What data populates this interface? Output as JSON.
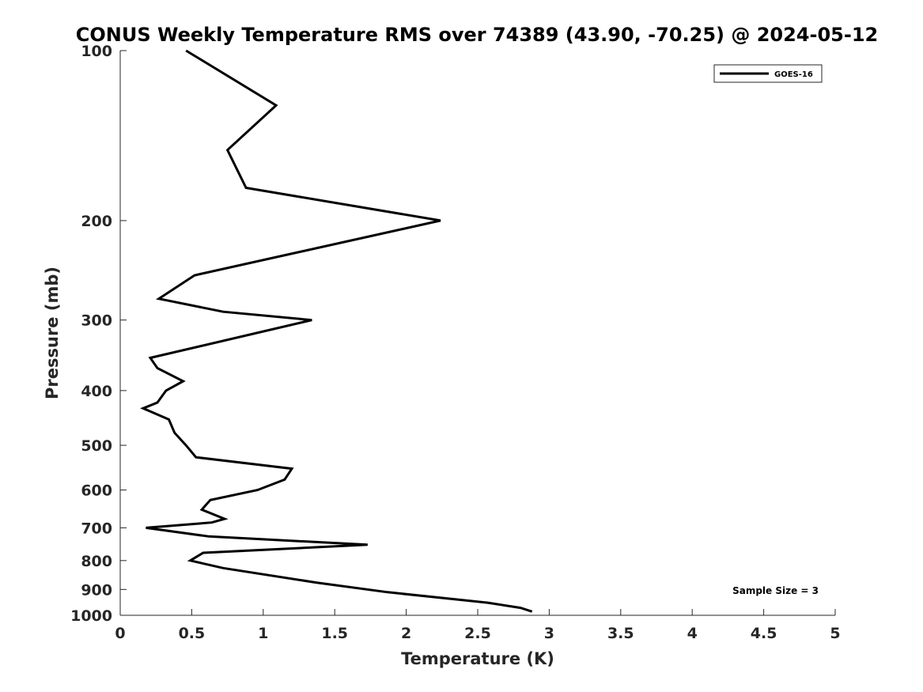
{
  "chart_data": {
    "type": "line",
    "title": "CONUS Weekly Temperature RMS over 74389 (43.90, -70.25) @ 2024-05-12",
    "xlabel": "Temperature (K)",
    "ylabel": "Pressure (mb)",
    "xlim": [
      0,
      5
    ],
    "ylim": [
      100,
      1000
    ],
    "y_scale": "log",
    "y_reversed": true,
    "x_ticks": [
      0,
      0.5,
      1,
      1.5,
      2,
      2.5,
      3,
      3.5,
      4,
      4.5,
      5
    ],
    "x_tick_labels": [
      "0",
      "0.5",
      "1",
      "1.5",
      "2",
      "2.5",
      "3",
      "3.5",
      "4",
      "4.5",
      "5"
    ],
    "y_ticks": [
      100,
      200,
      300,
      400,
      500,
      600,
      700,
      800,
      900,
      1000
    ],
    "y_tick_labels": [
      "100",
      "200",
      "300",
      "400",
      "500",
      "600",
      "700",
      "800",
      "900",
      "1000"
    ],
    "grid": false,
    "legend_position": "top-right",
    "series": [
      {
        "name": "GOES-16",
        "color": "#000000",
        "points": [
          {
            "x": 0.46,
            "p": 100
          },
          {
            "x": 1.09,
            "p": 125
          },
          {
            "x": 0.75,
            "p": 150
          },
          {
            "x": 0.88,
            "p": 175
          },
          {
            "x": 2.24,
            "p": 200
          },
          {
            "x": 0.52,
            "p": 250
          },
          {
            "x": 0.27,
            "p": 275
          },
          {
            "x": 0.72,
            "p": 290
          },
          {
            "x": 1.34,
            "p": 300
          },
          {
            "x": 0.21,
            "p": 350
          },
          {
            "x": 0.26,
            "p": 365
          },
          {
            "x": 0.44,
            "p": 385
          },
          {
            "x": 0.32,
            "p": 400
          },
          {
            "x": 0.26,
            "p": 420
          },
          {
            "x": 0.16,
            "p": 430
          },
          {
            "x": 0.34,
            "p": 450
          },
          {
            "x": 0.38,
            "p": 475
          },
          {
            "x": 0.46,
            "p": 500
          },
          {
            "x": 0.53,
            "p": 525
          },
          {
            "x": 1.2,
            "p": 550
          },
          {
            "x": 1.15,
            "p": 575
          },
          {
            "x": 0.96,
            "p": 600
          },
          {
            "x": 0.63,
            "p": 625
          },
          {
            "x": 0.57,
            "p": 650
          },
          {
            "x": 0.73,
            "p": 675
          },
          {
            "x": 0.64,
            "p": 685
          },
          {
            "x": 0.18,
            "p": 700
          },
          {
            "x": 0.62,
            "p": 725
          },
          {
            "x": 1.73,
            "p": 750
          },
          {
            "x": 0.58,
            "p": 775
          },
          {
            "x": 0.49,
            "p": 800
          },
          {
            "x": 0.72,
            "p": 825
          },
          {
            "x": 1.37,
            "p": 875
          },
          {
            "x": 1.87,
            "p": 910
          },
          {
            "x": 2.57,
            "p": 950
          },
          {
            "x": 2.8,
            "p": 970
          },
          {
            "x": 2.88,
            "p": 985
          }
        ]
      }
    ],
    "annotations": [
      "Sample Size = 3"
    ]
  }
}
